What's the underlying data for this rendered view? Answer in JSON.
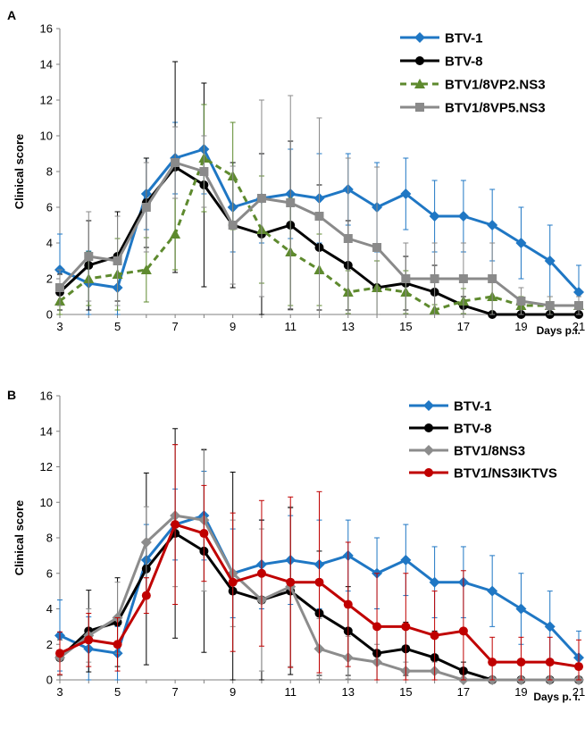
{
  "chart_data": [
    {
      "panel_label": "A",
      "type": "line",
      "xlabel": "Days p.i.",
      "ylabel": "Clinical score",
      "ylim": [
        0,
        16
      ],
      "xlim": [
        3,
        21
      ],
      "y_ticks": [
        "0",
        "2",
        "4",
        "6",
        "8",
        "10",
        "12",
        "14",
        "16"
      ],
      "x_ticks": [
        "3",
        "5",
        "7",
        "9",
        "11",
        "13",
        "15",
        "17",
        "19",
        "21"
      ],
      "x": [
        3,
        4,
        5,
        6,
        7,
        8,
        9,
        10,
        11,
        12,
        13,
        14,
        15,
        16,
        17,
        18,
        19,
        20,
        21
      ],
      "legend_position": "top-right",
      "series": [
        {
          "name": "BTV-1",
          "color": "#1f77c4",
          "marker": "diamond",
          "dash": false,
          "values": [
            2.5,
            1.75,
            1.5,
            6.75,
            8.75,
            9.25,
            6.0,
            6.5,
            6.75,
            6.5,
            7.0,
            6.0,
            6.75,
            5.5,
            5.5,
            5.0,
            4.0,
            3.0,
            1.25
          ],
          "errors": [
            2.0,
            1.8,
            1.5,
            2.0,
            2.0,
            2.5,
            2.5,
            2.5,
            2.5,
            2.5,
            2.0,
            2.5,
            2.0,
            2.0,
            2.0,
            2.0,
            2.0,
            2.0,
            1.5
          ]
        },
        {
          "name": "BTV-8",
          "color": "#000000",
          "marker": "circle",
          "dash": false,
          "values": [
            1.25,
            2.75,
            3.25,
            6.25,
            8.25,
            7.25,
            5.0,
            4.5,
            5.0,
            3.75,
            2.75,
            1.5,
            1.75,
            1.25,
            0.5,
            0.0,
            0.0,
            0.0,
            0.0
          ],
          "errors": [
            1.0,
            2.5,
            2.5,
            2.5,
            5.9,
            5.7,
            3.5,
            4.5,
            4.7,
            3.5,
            2.5,
            1.5,
            1.5,
            1.5,
            0.5,
            0.0,
            0.0,
            0.0,
            0.0
          ]
        },
        {
          "name": "BTV1/8VP2.NS3",
          "color": "#5e8a2e",
          "marker": "triangle",
          "dash": true,
          "values": [
            0.75,
            2.0,
            2.25,
            2.5,
            4.5,
            8.75,
            7.75,
            4.75,
            3.5,
            2.5,
            1.25,
            1.5,
            1.25,
            0.25,
            0.75,
            1.0,
            0.5,
            0.5,
            0.5
          ],
          "errors": [
            0.75,
            1.5,
            2.0,
            1.8,
            2.0,
            3.0,
            3.0,
            3.0,
            3.0,
            2.0,
            1.2,
            1.5,
            1.2,
            0.3,
            0.7,
            1.0,
            0.5,
            0.5,
            0.5
          ]
        },
        {
          "name": "BTV1/8VP5.NS3",
          "color": "#8a8a8a",
          "marker": "square",
          "dash": false,
          "values": [
            1.5,
            3.25,
            3.0,
            6.0,
            8.5,
            8.0,
            5.0,
            6.5,
            6.25,
            5.5,
            4.25,
            3.75,
            2.0,
            2.0,
            2.0,
            2.0,
            0.75,
            0.5,
            0.5
          ],
          "errors": [
            1.0,
            2.5,
            2.5,
            2.5,
            2.0,
            2.0,
            3.3,
            5.5,
            6.0,
            5.5,
            4.5,
            4.5,
            2.0,
            2.0,
            2.0,
            2.0,
            0.75,
            0.5,
            0.5
          ]
        }
      ]
    },
    {
      "panel_label": "B",
      "type": "line",
      "xlabel": "Days p. i.",
      "ylabel": "Clinical score",
      "ylim": [
        0,
        16
      ],
      "xlim": [
        3,
        21
      ],
      "y_ticks": [
        "0",
        "2",
        "4",
        "6",
        "8",
        "10",
        "12",
        "14",
        "16"
      ],
      "x_ticks": [
        "3",
        "5",
        "7",
        "9",
        "11",
        "13",
        "15",
        "17",
        "19",
        "21"
      ],
      "x": [
        3,
        4,
        5,
        6,
        7,
        8,
        9,
        10,
        11,
        12,
        13,
        14,
        15,
        16,
        17,
        18,
        19,
        20,
        21
      ],
      "legend_position": "top-right",
      "series": [
        {
          "name": "BTV-1",
          "color": "#1f77c4",
          "marker": "diamond",
          "dash": false,
          "values": [
            2.5,
            1.75,
            1.5,
            6.75,
            8.75,
            9.25,
            6.0,
            6.5,
            6.75,
            6.5,
            7.0,
            6.0,
            6.75,
            5.5,
            5.5,
            5.0,
            4.0,
            3.0,
            1.25
          ],
          "errors": [
            2.0,
            1.8,
            1.5,
            2.0,
            2.0,
            2.5,
            2.5,
            2.5,
            2.5,
            2.5,
            2.0,
            2.0,
            2.0,
            2.0,
            2.0,
            2.0,
            2.0,
            2.0,
            1.5
          ]
        },
        {
          "name": "BTV-8",
          "color": "#000000",
          "marker": "circle",
          "dash": false,
          "values": [
            1.25,
            2.75,
            3.25,
            6.25,
            8.25,
            7.25,
            5.0,
            4.5,
            5.0,
            3.75,
            2.75,
            1.5,
            1.75,
            1.25,
            0.5,
            0.0,
            0.0,
            0.0,
            0.0
          ],
          "errors": [
            1.0,
            2.3,
            2.5,
            5.4,
            5.9,
            5.7,
            6.7,
            4.5,
            4.7,
            3.5,
            2.5,
            1.5,
            1.5,
            1.5,
            0.5,
            0.0,
            0.0,
            0.0,
            0.0
          ]
        },
        {
          "name": "BTV1/8NS3",
          "color": "#8c8c8c",
          "marker": "diamond",
          "dash": false,
          "values": [
            1.25,
            2.5,
            3.5,
            7.75,
            9.25,
            9.0,
            6.0,
            4.5,
            5.25,
            1.75,
            1.25,
            1.0,
            0.5,
            0.5,
            0.0,
            0.0,
            0.0,
            0.0,
            0.0
          ],
          "errors": [
            1.0,
            1.5,
            2.0,
            2.0,
            4.0,
            4.0,
            3.0,
            4.0,
            4.5,
            1.7,
            1.2,
            1.0,
            0.5,
            0.5,
            0.0,
            0.0,
            0.0,
            0.0,
            0.0
          ]
        },
        {
          "name": "BTV1/NS3IKTVS",
          "color": "#c00000",
          "marker": "circle",
          "dash": false,
          "values": [
            1.5,
            2.25,
            2.0,
            4.75,
            8.75,
            8.25,
            5.5,
            6.0,
            5.5,
            5.5,
            4.25,
            3.0,
            3.0,
            2.5,
            2.75,
            1.0,
            1.0,
            1.0,
            0.75
          ],
          "errors": [
            1.2,
            1.5,
            1.5,
            1.0,
            4.5,
            2.7,
            3.9,
            4.1,
            4.8,
            5.1,
            3.5,
            3.0,
            3.0,
            2.5,
            3.4,
            1.4,
            1.4,
            1.4,
            1.5
          ]
        }
      ]
    }
  ]
}
